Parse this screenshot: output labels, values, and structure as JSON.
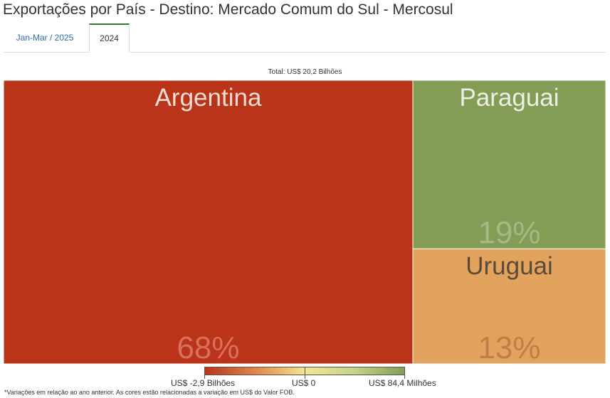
{
  "title": "Exportações por País - Destino: Mercado Comum do Sul - Mercosul",
  "tabs": [
    {
      "label": "Jan-Mar / 2025",
      "active": false
    },
    {
      "label": "2024",
      "active": true
    }
  ],
  "chart_data": {
    "type": "treemap",
    "total_label": "Total: US$ 20,2 Bilhões",
    "items": [
      {
        "name": "Argentina",
        "share": 68,
        "label": "68%",
        "color": "#b93419"
      },
      {
        "name": "Paraguai",
        "share": 19,
        "label": "19%",
        "color": "#839d56"
      },
      {
        "name": "Uruguai",
        "share": 13,
        "label": "13%",
        "color": "#e2a35f"
      }
    ],
    "legend": {
      "min_label": "US$ -2,9 Bilhões",
      "mid_label": "US$ 0",
      "max_label": "US$ 84,4 Milhões",
      "colors": [
        "#b93419",
        "#e0854a",
        "#f6e493",
        "#c5d48a",
        "#839d56"
      ]
    },
    "footnote": "*Variações em relação ao ano anterior. As cores estão relacionadas a variação em US$ do Valor FOB."
  }
}
